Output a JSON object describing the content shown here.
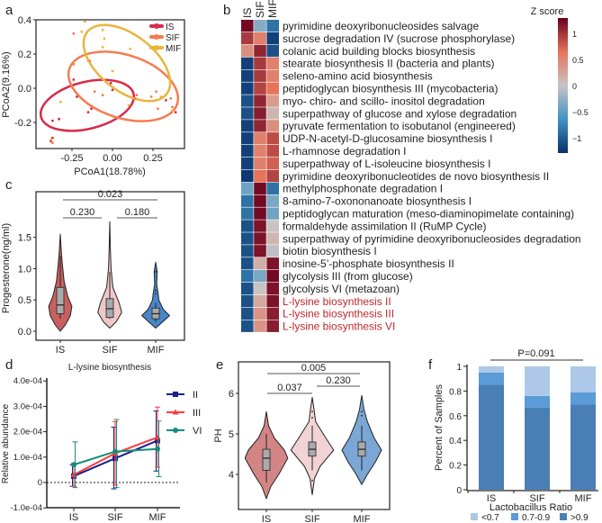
{
  "panel_labels": [
    "a",
    "b",
    "c",
    "d",
    "e",
    "f"
  ],
  "chart_data": [
    {
      "id": "a",
      "type": "scatter",
      "xlabel": "PCoA1(18.78%)",
      "ylabel": "PCoA2(9.16%)",
      "xticks": [
        -0.25,
        0.0,
        0.25
      ],
      "xtick_labels": [
        "-0.25",
        "0.00",
        "0.25"
      ],
      "yticks": [
        0.4,
        0.2,
        0.0,
        -0.2
      ],
      "ytick_labels": [
        "0.4",
        "0.2",
        "0.0",
        "-0.2"
      ],
      "legend": "top-right",
      "series": [
        {
          "name": "IS",
          "color": "#d62d4a",
          "points": [
            [
              -0.24,
              0.05
            ],
            [
              -0.22,
              -0.05
            ],
            [
              -0.37,
              -0.19
            ],
            [
              -0.33,
              -0.18
            ],
            [
              -0.15,
              -0.14
            ],
            [
              -0.13,
              -0.12
            ],
            [
              -0.01,
              0.03
            ],
            [
              0.0,
              -0.01
            ],
            [
              0.33,
              -0.07
            ],
            [
              0.39,
              -0.14
            ],
            [
              -0.37,
              -0.29
            ],
            [
              -0.38,
              -0.31
            ]
          ]
        },
        {
          "name": "SIF",
          "color": "#f57b51",
          "points": [
            [
              -0.24,
              0.32
            ],
            [
              -0.24,
              0.14
            ],
            [
              -0.14,
              0.16
            ],
            [
              -0.11,
              -0.02
            ],
            [
              -0.06,
              -0.04
            ],
            [
              0.15,
              -0.04
            ],
            [
              0.14,
              -0.06
            ],
            [
              0.27,
              -0.02
            ],
            [
              0.28,
              -0.12
            ],
            [
              0.36,
              -0.06
            ],
            [
              0.37,
              -0.11
            ],
            [
              -0.37,
              -0.32
            ],
            [
              0.24,
              -0.05
            ]
          ]
        },
        {
          "name": "MIF",
          "color": "#e8b63c",
          "points": [
            [
              -0.17,
              0.39
            ],
            [
              -0.19,
              0.33
            ],
            [
              -0.06,
              0.34
            ],
            [
              -0.05,
              0.29
            ],
            [
              -0.06,
              0.24
            ],
            [
              0.11,
              0.23
            ],
            [
              0.0,
              0.1
            ],
            [
              -0.15,
              0.16
            ],
            [
              0.1,
              -0.1
            ],
            [
              0.3,
              -0.05
            ],
            [
              0.37,
              -0.13
            ],
            [
              -0.32,
              -0.08
            ],
            [
              -0.38,
              -0.3
            ]
          ]
        }
      ]
    },
    {
      "id": "b",
      "type": "heatmap",
      "columns": [
        "IS",
        "SIF",
        "MIF"
      ],
      "colorbar_title": "Z score",
      "colorbar_ticks": [
        "1",
        "0.5",
        "0",
        "−0.5",
        "−1"
      ],
      "colorbar_values": [
        1,
        0.5,
        0,
        -0.5,
        -1
      ],
      "highlight_color": "#c0272d",
      "rows": [
        {
          "label": "pyrimidine deoxyribonucleosides salvage",
          "values": [
            1.15,
            -0.3,
            -0.8
          ]
        },
        {
          "label": "sucrose degradation IV (sucrose phosphorylase)",
          "values": [
            0.9,
            0.5,
            -1.1
          ]
        },
        {
          "label": "colanic acid building blocks biosynthesis",
          "values": [
            0.4,
            1.0,
            -1.0
          ]
        },
        {
          "label": "stearate biosynthesis II (bacteria and plants)",
          "values": [
            -1.1,
            0.9,
            0.5
          ]
        },
        {
          "label": "seleno-amino acid biosynthesis",
          "values": [
            -1.1,
            0.9,
            0.5
          ]
        },
        {
          "label": "peptidoglycan biosynthesis III (mycobacteria)",
          "values": [
            -1.1,
            0.85,
            0.6
          ]
        },
        {
          "label": "myo- chiro- and scillo- inositol degradation",
          "values": [
            -1.0,
            1.0,
            0.3
          ]
        },
        {
          "label": "superpathway of glucose and xylose degradation",
          "values": [
            -1.0,
            1.05,
            0.1
          ]
        },
        {
          "label": "pyruvate fermentation to isobutanol (engineered)",
          "values": [
            -1.1,
            1.0,
            0.4
          ]
        },
        {
          "label": "UDP-N-acetyl-D-glucosamine biosynthesis I",
          "values": [
            -1.1,
            0.5,
            0.8
          ]
        },
        {
          "label": "L-rhamnose degradation I",
          "values": [
            -1.1,
            0.5,
            0.8
          ]
        },
        {
          "label": "superpathway of L-isoleucine biosynthesis I",
          "values": [
            -1.1,
            0.5,
            0.7
          ]
        },
        {
          "label": "pyrimidine deoxyribonucleotides de novo biosynthesis II",
          "values": [
            -1.15,
            0.6,
            0.85
          ]
        },
        {
          "label": "methylphosphonate degradation I",
          "values": [
            -0.4,
            1.15,
            -0.8
          ]
        },
        {
          "label": "8-amino-7-oxononanoate biosynthesis I",
          "values": [
            -0.8,
            1.15,
            -0.35
          ]
        },
        {
          "label": "peptidoglycan maturation (meso-diaminopimelate containing)",
          "values": [
            -0.8,
            1.15,
            -0.4
          ]
        },
        {
          "label": "formaldehyde assimilation II  (RuMP Cycle)",
          "values": [
            -1.0,
            1.1,
            0.0
          ]
        },
        {
          "label": "superpathway of pyrimidine deoxyribonucleosides degradation",
          "values": [
            -1.0,
            1.1,
            0.1
          ]
        },
        {
          "label": "biotin biosynthesis I",
          "values": [
            -1.0,
            1.1,
            -0.05
          ]
        },
        {
          "label": "inosine-5’-phosphate biosynthesis II",
          "values": [
            -1.0,
            0.15,
            1.1
          ]
        },
        {
          "label": "glycolysis III  (from glucose)",
          "values": [
            -0.8,
            -0.35,
            1.15
          ]
        },
        {
          "label": "glycolysis VI  (metazoan)",
          "values": [
            -1.0,
            0.0,
            1.1
          ]
        },
        {
          "label": "L-lysine biosynthesis II",
          "values": [
            -1.0,
            0.2,
            1.1
          ],
          "highlight": true
        },
        {
          "label": "L-lysine biosynthesis III",
          "values": [
            -1.0,
            0.35,
            1.05
          ],
          "highlight": true
        },
        {
          "label": "L-lysine biosynthesis VI",
          "values": [
            -1.0,
            0.35,
            1.05
          ],
          "highlight": true
        }
      ]
    },
    {
      "id": "c",
      "type": "violin",
      "ylabel": "Progesterone(ng/ml)",
      "categories": [
        "IS",
        "SIF",
        "MIF"
      ],
      "yticks": [
        0.0,
        0.5,
        1.0,
        1.5
      ],
      "ytick_labels": [
        "0.0",
        "0.5",
        "1.0",
        "1.5"
      ],
      "colors": [
        "#c96060",
        "#f0c7c9",
        "#4a86c8"
      ],
      "stats": [
        {
          "median": 0.42,
          "q1": 0.28,
          "q3": 0.7,
          "lo": 0.2,
          "hi": 1.2
        },
        {
          "median": 0.36,
          "q1": 0.22,
          "q3": 0.52,
          "lo": 0.2,
          "hi": 0.95
        },
        {
          "median": 0.28,
          "q1": 0.2,
          "q3": 0.37,
          "lo": 0.15,
          "hi": 0.45,
          "outliers": [
            0.6,
            0.65,
            0.95
          ]
        }
      ],
      "comparisons": [
        {
          "pair": [
            "IS",
            "SIF"
          ],
          "p": "0.230"
        },
        {
          "pair": [
            "SIF",
            "MIF"
          ],
          "p": "0.180"
        },
        {
          "pair": [
            "IS",
            "MIF"
          ],
          "p": "0.023"
        }
      ]
    },
    {
      "id": "d",
      "type": "line",
      "title": "L-lysine biosynthesis",
      "ylabel": "Relative abundance",
      "categories": [
        "IS",
        "SIF",
        "MIF"
      ],
      "yticks": [
        -0.0001,
        0,
        0.0001,
        0.0002,
        0.0003,
        0.0004
      ],
      "ytick_labels": [
        "-1.0e-04",
        "0",
        "1.0e-04",
        "2.0e-04",
        "3.0e-04",
        "4.0e-04"
      ],
      "series": [
        {
          "name": "II",
          "color": "#1b1f8a",
          "marker": "square",
          "values": [
            2.5e-05,
            9.5e-05,
            0.000165
          ],
          "err_lo": [
            -1.5e-05,
            -2.5e-05,
            4.5e-05
          ],
          "err_hi": [
            7e-05,
            0.000218,
            0.000282
          ]
        },
        {
          "name": "III",
          "color": "#ff3b3b",
          "marker": "triangle",
          "values": [
            3e-05,
            0.000115,
            0.000178
          ],
          "err_lo": [
            -1.5e-05,
            -1e-05,
            6e-05
          ],
          "err_hi": [
            7.5e-05,
            0.00024,
            0.000297
          ]
        },
        {
          "name": "VI",
          "color": "#1a8a7a",
          "marker": "circle",
          "values": [
            7e-05,
            0.000122,
            0.000132
          ],
          "err_lo": [
            -2e-05,
            -2e-05,
            2.3e-05
          ],
          "err_hi": [
            0.00016,
            0.000248,
            0.000242
          ]
        }
      ]
    },
    {
      "id": "e",
      "type": "violin",
      "ylabel": "PH",
      "categories": [
        "IS",
        "SIF",
        "MIF"
      ],
      "yticks": [
        4,
        5,
        6
      ],
      "ytick_labels": [
        "4",
        "5",
        "6"
      ],
      "colors": [
        "#d38585",
        "#f2d3d5",
        "#7ba7d6"
      ],
      "stats": [
        {
          "median": 4.4,
          "q1": 4.1,
          "q3": 4.62,
          "lo": 3.8,
          "hi": 5.0
        },
        {
          "median": 4.62,
          "q1": 4.45,
          "q3": 4.8,
          "lo": 4.1,
          "hi": 5.2,
          "outliers": [
            5.4,
            5.55,
            3.85
          ]
        },
        {
          "median": 4.62,
          "q1": 4.45,
          "q3": 4.8,
          "lo": 4.1,
          "hi": 5.2,
          "outliers": [
            5.45,
            5.55
          ]
        }
      ],
      "comparisons": [
        {
          "pair": [
            "IS",
            "SIF"
          ],
          "p": "0.037"
        },
        {
          "pair": [
            "SIF",
            "MIF"
          ],
          "p": "0.230"
        },
        {
          "pair": [
            "IS",
            "MIF"
          ],
          "p": "0.005"
        }
      ]
    },
    {
      "id": "f",
      "type": "bar",
      "stacked": true,
      "title": "P=0.091",
      "ylabel": "Percent of Samples",
      "xlabel": "Lactobacillus Ratio",
      "categories": [
        "IS",
        "SIF",
        "MIF"
      ],
      "yticks": [
        0,
        0.2,
        0.4,
        0.6,
        0.8,
        1
      ],
      "ytick_labels": [
        "0",
        "0.2",
        "0.4",
        "0.6",
        "0.8",
        "1"
      ],
      "legend": "bottom",
      "series": [
        {
          "name": ">0.9",
          "color": "#4a7fb5",
          "values": [
            0.85,
            0.665,
            0.69
          ]
        },
        {
          "name": "0.7-0.9",
          "color": "#5a9bd8",
          "values": [
            0.1,
            0.095,
            0.1
          ]
        },
        {
          "name": "<0.7",
          "color": "#adc8e8",
          "values": [
            0.05,
            0.24,
            0.21
          ]
        }
      ]
    }
  ]
}
